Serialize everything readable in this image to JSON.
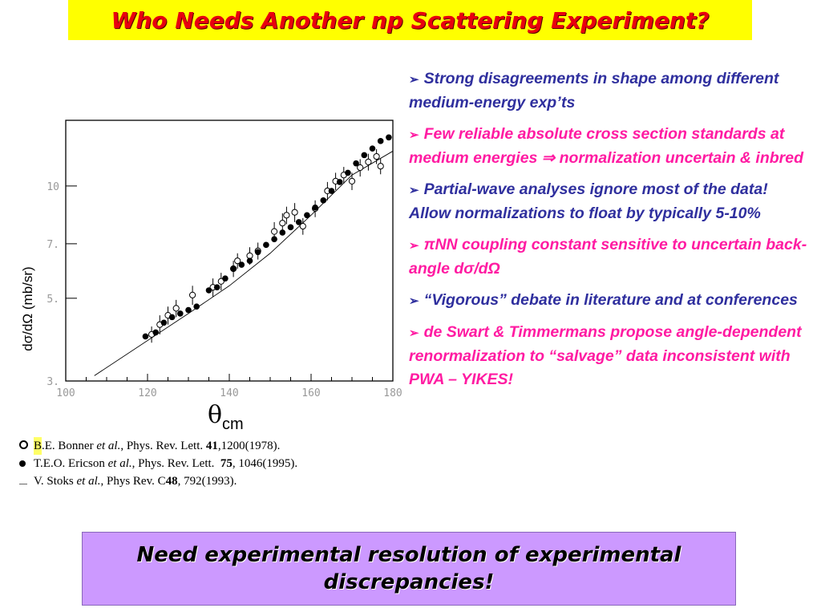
{
  "title": "Who Needs Another np Scattering Experiment?",
  "chart_data": {
    "type": "scatter",
    "xlabel_symbol": "θ",
    "xlabel_sub": "cm",
    "ylabel": "dσ/dΩ (mb/sr)",
    "xlim": [
      100,
      180
    ],
    "ylim": [
      3,
      15
    ],
    "y_scale": "log",
    "x_ticks": [
      "100",
      "120",
      "140",
      "160",
      "180"
    ],
    "x_tick_values": [
      100,
      120,
      140,
      160,
      180
    ],
    "y_ticks": [
      "10",
      "7.",
      "5.",
      "3."
    ],
    "y_tick_values": [
      10,
      7,
      5,
      3
    ],
    "series": [
      {
        "marker": "filled-circle",
        "x": [
          119.5,
          122,
          124,
          126,
          128,
          130,
          132,
          135,
          137,
          139,
          141,
          143,
          145,
          147,
          149,
          151,
          153,
          155,
          157,
          159,
          161,
          163,
          165,
          167,
          169,
          171,
          173,
          175,
          177,
          179
        ],
        "y": [
          3.95,
          4.05,
          4.3,
          4.45,
          4.55,
          4.65,
          4.75,
          5.25,
          5.35,
          5.65,
          6.0,
          6.15,
          6.3,
          6.65,
          6.95,
          7.2,
          7.5,
          7.75,
          8.0,
          8.35,
          8.75,
          9.15,
          9.7,
          10.25,
          10.85,
          11.5,
          12.1,
          12.6,
          13.2,
          13.5
        ]
      },
      {
        "marker": "open-circle-errorbar",
        "x": [
          121,
          123,
          125,
          127,
          131,
          136,
          138,
          141,
          142,
          145,
          147,
          151,
          153,
          154,
          156,
          158,
          161,
          164,
          166,
          168,
          170,
          172,
          174,
          176,
          177
        ],
        "y": [
          4.0,
          4.25,
          4.5,
          4.7,
          5.1,
          5.35,
          5.55,
          6.0,
          6.3,
          6.5,
          6.7,
          7.55,
          7.95,
          8.35,
          8.5,
          7.8,
          8.7,
          9.7,
          10.3,
          10.7,
          10.3,
          11.2,
          11.6,
          12.0,
          11.3
        ],
        "yerr": [
          0.2,
          0.25,
          0.25,
          0.25,
          0.3,
          0.3,
          0.3,
          0.3,
          0.3,
          0.35,
          0.35,
          0.45,
          0.5,
          0.45,
          0.5,
          0.4,
          0.45,
          0.55,
          0.55,
          0.55,
          0.55,
          0.6,
          0.6,
          0.55,
          0.55
        ]
      },
      {
        "marker": "line",
        "x": [
          107,
          130,
          140,
          150,
          160,
          170,
          180
        ],
        "y": [
          3.1,
          4.55,
          5.4,
          6.6,
          8.35,
          10.7,
          12.4
        ]
      }
    ]
  },
  "references": [
    {
      "marker": "open-circle",
      "prefix": "B",
      "text_a": ".E. Bonner ",
      "etal": "et al.",
      "text_b": ", Phys. Rev. Lett. ",
      "vol": "41",
      "text_c": ",1200(1978)."
    },
    {
      "marker": "filled-circle",
      "prefix": "",
      "text_a": "T.E.O. Ericson ",
      "etal": "et al.",
      "text_b": ", Phys. Rev. Lett.  ",
      "vol": "75",
      "text_c": ", 1046(1995)."
    },
    {
      "marker": "dash",
      "prefix": "",
      "text_a": "V. Stoks ",
      "etal": "et al.",
      "text_b": ", Phys Rev. C",
      "vol": "48",
      "text_c": ", 792(1993)."
    }
  ],
  "bullets": [
    {
      "color": "#2f2f9e",
      "text": "Strong disagreements in shape among different medium-energy exp’ts"
    },
    {
      "color": "#ff1ba2",
      "text": "Few reliable absolute cross section standards at medium energies ⇒ normalization uncertain & inbred"
    },
    {
      "color": "#2f2f9e",
      "text": "Partial-wave analyses ignore most of the data!  Allow normalizations to float by typically 5-10%"
    },
    {
      "color": "#ff1ba2",
      "text": "πNN coupling constant sensitive to uncertain back-angle dσ/dΩ"
    },
    {
      "color": "#2f2f9e",
      "text": "“Vigorous” debate in literature and at conferences"
    },
    {
      "color": "#ff1ba2",
      "text": "de Swart & Timmermans propose angle-dependent renormalization to “salvage” data inconsistent with PWA – YIKES!"
    }
  ],
  "bottom_banner": "Need experimental resolution of experimental discrepancies!",
  "bullet_icon": "arrowhead-bullet-icon"
}
